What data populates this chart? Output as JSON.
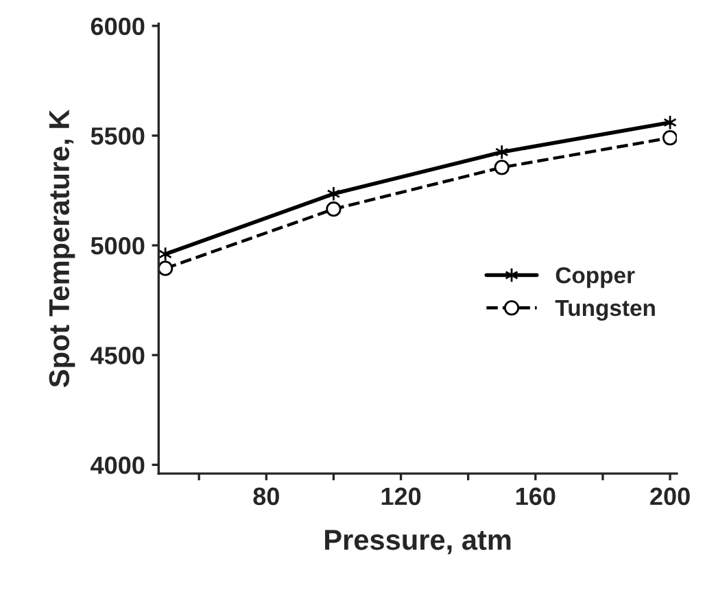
{
  "chart_data": {
    "type": "line",
    "xlabel": "Pressure, atm",
    "ylabel": "Spot Temperature, K",
    "x": [
      50,
      100,
      150,
      200
    ],
    "series": [
      {
        "name": "Copper",
        "color": "#000000",
        "values": [
          4960,
          5235,
          5425,
          5560
        ],
        "marker": "cross",
        "line_style": "solid"
      },
      {
        "name": "Tungsten",
        "color": "#000000",
        "values": [
          4895,
          5165,
          5355,
          5490
        ],
        "marker": "circle",
        "line_style": "dashed"
      }
    ],
    "xlim": [
      48,
      202
    ],
    "ylim": [
      3960,
      6010
    ],
    "xticks": [
      {
        "value": 60,
        "label": null
      },
      80,
      {
        "value": 100,
        "label": null
      },
      120,
      {
        "value": 140,
        "label": null
      },
      160,
      {
        "value": 180,
        "label": null
      },
      200
    ],
    "yticks": [
      4000,
      4500,
      5000,
      5500,
      6000
    ],
    "grid": false,
    "legend": "right"
  }
}
